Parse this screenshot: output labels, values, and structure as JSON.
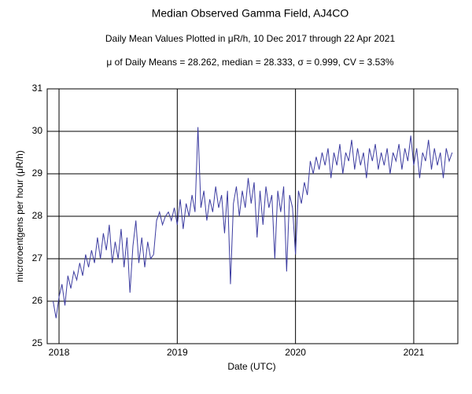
{
  "chart_data": {
    "type": "line",
    "title": "Median Observed Gamma Field, AJ4CO",
    "subtitle": "Daily Mean Values Plotted in μR/h, 10 Dec 2017 through 22 Apr 2021",
    "annotation": "μ of Daily Means = 28.262,   median = 28.333,   σ = 0.999,   CV = 3.53%",
    "xlabel": "Date (UTC)",
    "ylabel": "microroentgens per hour (μR/h)",
    "color": "#3c3ca0",
    "grid": true,
    "xlim": [
      2017.9,
      2021.373
    ],
    "ylim": [
      25,
      31
    ],
    "xticks": [
      2018,
      2019,
      2020,
      2021
    ],
    "yticks": [
      25,
      26,
      27,
      28,
      29,
      30,
      31
    ],
    "x": [
      2017.95,
      2017.975,
      2018,
      2018.025,
      2018.05,
      2018.075,
      2018.1,
      2018.125,
      2018.15,
      2018.175,
      2018.2,
      2018.225,
      2018.25,
      2018.275,
      2018.3,
      2018.325,
      2018.35,
      2018.375,
      2018.4,
      2018.425,
      2018.45,
      2018.475,
      2018.5,
      2018.525,
      2018.55,
      2018.575,
      2018.6,
      2018.625,
      2018.65,
      2018.675,
      2018.7,
      2018.725,
      2018.75,
      2018.775,
      2018.8,
      2018.825,
      2018.85,
      2018.875,
      2018.9,
      2018.925,
      2018.95,
      2018.975,
      2019,
      2019.025,
      2019.05,
      2019.075,
      2019.1,
      2019.125,
      2019.15,
      2019.175,
      2019.2,
      2019.225,
      2019.25,
      2019.275,
      2019.3,
      2019.325,
      2019.35,
      2019.375,
      2019.4,
      2019.425,
      2019.45,
      2019.475,
      2019.5,
      2019.525,
      2019.55,
      2019.575,
      2019.6,
      2019.625,
      2019.65,
      2019.675,
      2019.7,
      2019.725,
      2019.75,
      2019.775,
      2019.8,
      2019.825,
      2019.85,
      2019.875,
      2019.9,
      2019.925,
      2019.95,
      2019.975,
      2020,
      2020.025,
      2020.05,
      2020.075,
      2020.1,
      2020.125,
      2020.15,
      2020.175,
      2020.2,
      2020.225,
      2020.25,
      2020.275,
      2020.3,
      2020.325,
      2020.35,
      2020.375,
      2020.4,
      2020.425,
      2020.45,
      2020.475,
      2020.5,
      2020.525,
      2020.55,
      2020.575,
      2020.6,
      2020.625,
      2020.65,
      2020.675,
      2020.7,
      2020.725,
      2020.75,
      2020.775,
      2020.8,
      2020.825,
      2020.85,
      2020.875,
      2020.9,
      2020.925,
      2020.95,
      2020.975,
      2021,
      2021.025,
      2021.05,
      2021.075,
      2021.1,
      2021.125,
      2021.15,
      2021.175,
      2021.2,
      2021.225,
      2021.25,
      2021.275,
      2021.3,
      2021.325
    ],
    "values": [
      26.0,
      25.6,
      26.1,
      26.4,
      25.9,
      26.6,
      26.3,
      26.7,
      26.5,
      26.9,
      26.6,
      27.1,
      26.8,
      27.2,
      26.9,
      27.5,
      27.0,
      27.6,
      27.2,
      27.8,
      26.9,
      27.4,
      27.0,
      27.7,
      26.8,
      27.5,
      26.2,
      27.3,
      27.9,
      26.9,
      27.5,
      26.8,
      27.4,
      27.0,
      27.1,
      27.9,
      28.1,
      27.8,
      28.0,
      28.1,
      27.9,
      28.2,
      27.8,
      28.4,
      27.7,
      28.3,
      28.0,
      28.5,
      28.1,
      30.1,
      28.2,
      28.6,
      27.9,
      28.4,
      28.1,
      28.7,
      28.2,
      28.5,
      27.6,
      28.6,
      26.4,
      28.3,
      28.7,
      28.0,
      28.6,
      28.2,
      28.9,
      28.3,
      28.8,
      27.5,
      28.6,
      27.8,
      28.7,
      28.2,
      28.5,
      27.0,
      28.6,
      28.1,
      28.7,
      26.7,
      28.5,
      28.2,
      27.1,
      28.6,
      28.3,
      28.8,
      28.5,
      29.3,
      29.0,
      29.4,
      29.1,
      29.5,
      29.2,
      29.6,
      28.9,
      29.5,
      29.2,
      29.7,
      29.0,
      29.5,
      29.3,
      29.8,
      29.1,
      29.6,
      29.2,
      29.5,
      28.9,
      29.6,
      29.3,
      29.7,
      29.1,
      29.5,
      29.2,
      29.6,
      29.0,
      29.5,
      29.3,
      29.7,
      29.1,
      29.6,
      29.3,
      29.9,
      29.2,
      29.6,
      28.9,
      29.5,
      29.3,
      29.8,
      29.1,
      29.6,
      29.2,
      29.5,
      28.9,
      29.6,
      29.3,
      29.5
    ]
  }
}
